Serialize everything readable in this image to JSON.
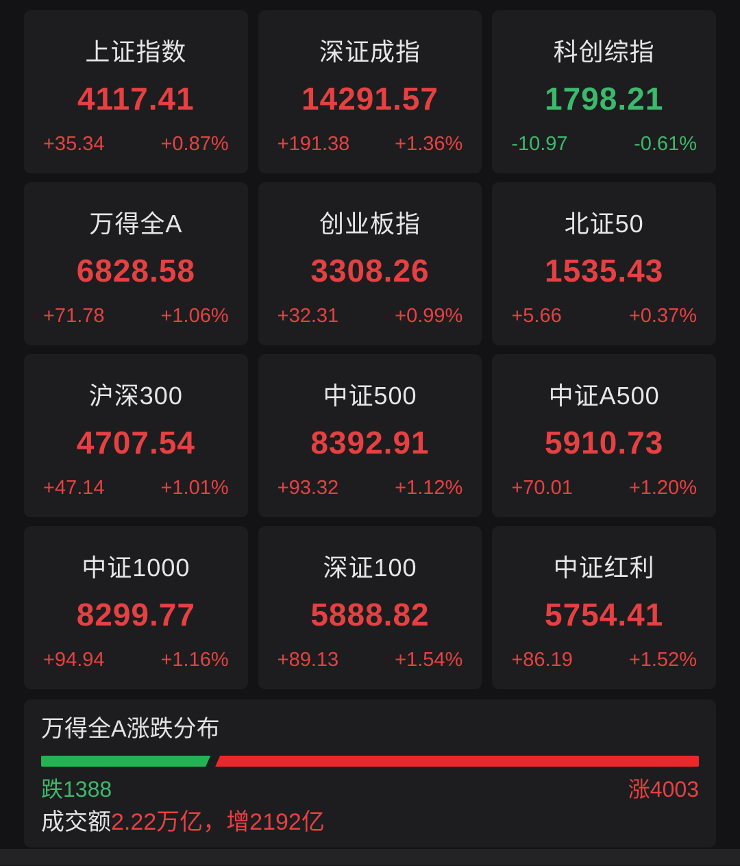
{
  "colors": {
    "up": "#e64142",
    "down": "#3cba6c",
    "bar_up": "#ea282c",
    "bar_down": "#23b354"
  },
  "index_cards": [
    {
      "name": "上证指数",
      "value": "4117.41",
      "change": "+35.34",
      "pct": "+0.87%",
      "dir": "up"
    },
    {
      "name": "深证成指",
      "value": "14291.57",
      "change": "+191.38",
      "pct": "+1.36%",
      "dir": "up"
    },
    {
      "name": "科创综指",
      "value": "1798.21",
      "change": "-10.97",
      "pct": "-0.61%",
      "dir": "down"
    },
    {
      "name": "万得全A",
      "value": "6828.58",
      "change": "+71.78",
      "pct": "+1.06%",
      "dir": "up"
    },
    {
      "name": "创业板指",
      "value": "3308.26",
      "change": "+32.31",
      "pct": "+0.99%",
      "dir": "up"
    },
    {
      "name": "北证50",
      "value": "1535.43",
      "change": "+5.66",
      "pct": "+0.37%",
      "dir": "up"
    },
    {
      "name": "沪深300",
      "value": "4707.54",
      "change": "+47.14",
      "pct": "+1.01%",
      "dir": "up"
    },
    {
      "name": "中证500",
      "value": "8392.91",
      "change": "+93.32",
      "pct": "+1.12%",
      "dir": "up"
    },
    {
      "name": "中证A500",
      "value": "5910.73",
      "change": "+70.01",
      "pct": "+1.20%",
      "dir": "up"
    },
    {
      "name": "中证1000",
      "value": "8299.77",
      "change": "+94.94",
      "pct": "+1.16%",
      "dir": "up"
    },
    {
      "name": "深证100",
      "value": "5888.82",
      "change": "+89.13",
      "pct": "+1.54%",
      "dir": "up"
    },
    {
      "name": "中证红利",
      "value": "5754.41",
      "change": "+86.19",
      "pct": "+1.52%",
      "dir": "up"
    }
  ],
  "breadth": {
    "title": "万得全A涨跌分布",
    "down_count": 1388,
    "up_count": 4003,
    "down_label": "跌1388",
    "up_label": "涨4003",
    "down_pct": 25.75,
    "turnover_prefix": "成交额",
    "turnover_value": "2.22万亿，",
    "turnover_change": "增2192亿"
  }
}
